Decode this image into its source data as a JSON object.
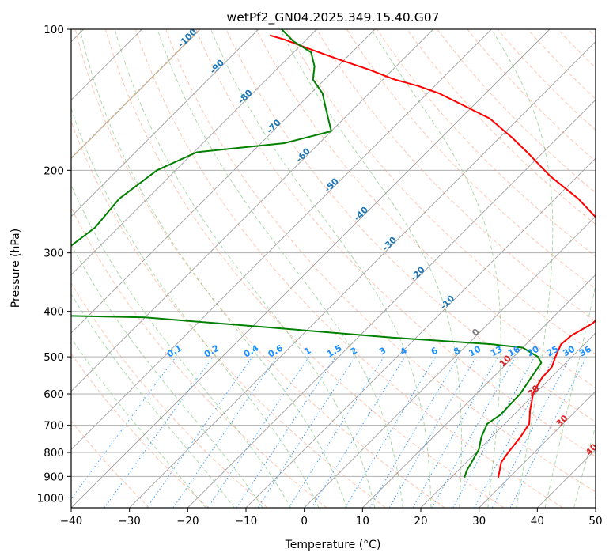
{
  "chart_data": {
    "type": "line",
    "title": "wetPf2_GN04.2025.349.15.40.G07",
    "xlabel": "Temperature (°C)",
    "ylabel": "Pressure (hPa)",
    "xlim": [
      -40,
      50
    ],
    "ylim": [
      1050,
      100
    ],
    "yscale": "log",
    "x_ticks": [
      -40,
      -30,
      -20,
      -10,
      0,
      10,
      20,
      30,
      40,
      50
    ],
    "y_ticks": [
      100,
      200,
      300,
      400,
      500,
      600,
      700,
      800,
      900,
      1000
    ],
    "skew_deg": 45,
    "grid": true,
    "colors": {
      "temperature": "#ff0000",
      "dewpoint": "#008000",
      "isotherm": "#7f7f7f",
      "dry_adiabat": "#ff7f50",
      "moist_adiabat": "#2ca02c",
      "mixing_ratio": "#1e90ff",
      "isotherm_labels_neg": "#1f77b4",
      "isotherm_labels_pos": "#d62728",
      "highlight_isotherm": "#d2b48c"
    },
    "series": [
      {
        "name": "",
        "kind": "temperature",
        "points": [
          [
            28.1,
            905
          ],
          [
            27.0,
            870
          ],
          [
            26.0,
            840
          ],
          [
            25.5,
            800
          ],
          [
            25.0,
            745
          ],
          [
            24.2,
            695
          ],
          [
            22.0,
            650
          ],
          [
            19.5,
            595
          ],
          [
            18.5,
            555
          ],
          [
            18.3,
            525
          ],
          [
            17.2,
            500
          ],
          [
            16.0,
            470
          ],
          [
            16.3,
            450
          ],
          [
            17.8,
            425
          ],
          [
            18.0,
            410
          ],
          [
            16.0,
            385
          ],
          [
            12.0,
            345
          ],
          [
            9.0,
            310
          ],
          [
            6.8,
            280
          ],
          [
            1.0,
            255
          ],
          [
            -6.0,
            230
          ],
          [
            -15.0,
            205
          ],
          [
            -22.0,
            185
          ],
          [
            -28.0,
            170
          ],
          [
            -35.0,
            155
          ],
          [
            -42.0,
            145
          ],
          [
            -48.0,
            137
          ],
          [
            -53.0,
            132
          ],
          [
            -58.0,
            128
          ],
          [
            -64.0,
            122
          ],
          [
            -71.0,
            116
          ],
          [
            -78.0,
            110
          ],
          [
            -84.0,
            105
          ],
          [
            -87.0,
            103
          ]
        ]
      },
      {
        "name": "",
        "kind": "dewpoint",
        "points": [
          [
            22.3,
            905
          ],
          [
            21.5,
            875
          ],
          [
            21.0,
            845
          ],
          [
            20.0,
            790
          ],
          [
            18.2,
            740
          ],
          [
            17.0,
            695
          ],
          [
            17.7,
            665
          ],
          [
            17.5,
            600
          ],
          [
            16.3,
            540
          ],
          [
            15.8,
            515
          ],
          [
            14.2,
            500
          ],
          [
            10.0,
            478
          ],
          [
            4.0,
            470
          ],
          [
            -14.0,
            455
          ],
          [
            -40.0,
            430
          ],
          [
            -60.0,
            412
          ],
          [
            -90.0,
            405
          ],
          [
            -88.0,
            310
          ],
          [
            -85.0,
            290
          ],
          [
            -84.0,
            265
          ],
          [
            -84.8,
            230
          ],
          [
            -83.2,
            200
          ],
          [
            -79.5,
            183
          ],
          [
            -66.0,
            175
          ],
          [
            -60.0,
            165
          ],
          [
            -65.0,
            147
          ],
          [
            -68.0,
            137
          ],
          [
            -72.0,
            128
          ],
          [
            -74.0,
            120
          ],
          [
            -77.0,
            112
          ],
          [
            -82.0,
            106
          ],
          [
            -86.0,
            100
          ]
        ]
      }
    ],
    "isotherm_labels": [
      "-100",
      "-90",
      "-80",
      "-70",
      "-60",
      "-50",
      "-40",
      "-30",
      "-20",
      "-10",
      "0",
      "10",
      "20",
      "30",
      "40"
    ],
    "mixing_ratio_labels": [
      "0.1",
      "0.2",
      "0.4",
      "0.6",
      "1",
      "1.5",
      "2",
      "3",
      "4",
      "6",
      "8",
      "10",
      "13",
      "16",
      "20",
      "25",
      "30",
      "36"
    ],
    "mixing_ratio_values": [
      0.1,
      0.2,
      0.4,
      0.6,
      1,
      1.5,
      2,
      3,
      4,
      6,
      8,
      10,
      13,
      16,
      20,
      25,
      30,
      36
    ]
  }
}
